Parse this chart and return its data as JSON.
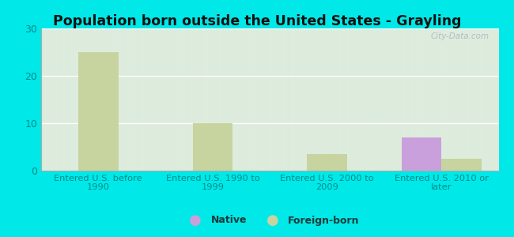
{
  "title": "Population born outside the United States - Grayling",
  "categories": [
    "Entered U.S. before\n1990",
    "Entered U.S. 1990 to\n1999",
    "Entered U.S. 2000 to\n2009",
    "Entered U.S. 2010 or\nlater"
  ],
  "native_values": [
    0,
    0,
    0,
    7
  ],
  "foreign_born_values": [
    25,
    10,
    3.5,
    2.5
  ],
  "native_color": "#c9a0dc",
  "foreign_born_color": "#c8d4a0",
  "background_color": "#00e8e8",
  "plot_bg_top": "#cde0cd",
  "plot_bg_bottom": "#eef8ee",
  "title_color": "#111111",
  "tick_label_color": "#008b8b",
  "legend_text_color": "#1a3a3a",
  "ylim": [
    0,
    30
  ],
  "yticks": [
    0,
    10,
    20,
    30
  ],
  "bar_width": 0.35,
  "watermark": "City-Data.com",
  "legend_native_label": "Native",
  "legend_foreign_label": "Foreign-born"
}
